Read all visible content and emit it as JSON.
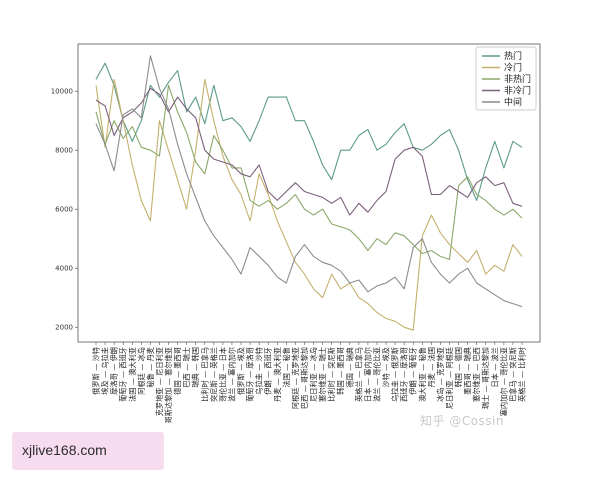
{
  "chart_data": {
    "type": "line",
    "title": "",
    "xlabel": "",
    "ylabel": "",
    "ylim": [
      1500,
      11600
    ],
    "yticks": [
      2000,
      4000,
      6000,
      8000,
      10000
    ],
    "grid": false,
    "legend_placement": "top-right",
    "categories": [
      "俄罗斯 — 沙特",
      "埃及 — 乌拉圭",
      "摩洛哥 — 伊朗",
      "葡萄牙 — 西班牙",
      "法国 — 澳大利亚",
      "阿根廷 — 冰岛",
      "秘鲁 — 丹麦",
      "克罗地亚 — 尼日利亚",
      "哥斯达黎加 — 塞尔维亚",
      "德国 — 墨西哥",
      "巴西 — 瑞士",
      "瑞典 — 韩国",
      "比利时 — 巴拿马",
      "突尼斯 — 英格兰",
      "哥伦比亚 — 日本",
      "波兰 — 塞内加尔",
      "俄罗斯 — 埃及",
      "葡萄牙 — 摩洛哥",
      "乌拉圭 — 沙特",
      "伊朗 — 西班牙",
      "丹麦 — 澳大利亚",
      "法国 — 秘鲁",
      "阿根廷 — 克罗地亚",
      "巴西 — 哥斯达黎加",
      "尼日利亚 — 冰岛",
      "塞尔维亚 — 瑞士",
      "比利时 — 突尼斯",
      "韩国 — 墨西哥",
      "德国 — 瑞典",
      "英格兰 — 巴拿马",
      "日本 — 塞内加尔",
      "波兰 — 哥伦比亚",
      "沙特 — 埃及",
      "乌拉圭 — 俄罗斯",
      "西班牙 — 摩洛哥",
      "伊朗 — 葡萄牙",
      "澳大利亚 — 秘鲁",
      "丹麦 — 法国",
      "冰岛 — 克罗地亚",
      "尼日利亚 — 阿根廷",
      "韩国 — 德国",
      "墨西哥 — 瑞典",
      "塞尔维亚 — 巴西",
      "瑞士 — 哥斯达黎加",
      "日本 — 波兰",
      "塞内加尔 — 哥伦比亚",
      "巴拿马 — 突尼斯",
      "英格兰 — 比利时"
    ],
    "series": [
      {
        "name": "热门",
        "color": "#5d9b8a",
        "values": [
          10400,
          10950,
          10200,
          9000,
          8300,
          9000,
          10200,
          9800,
          10300,
          10700,
          9300,
          9800,
          8900,
          10200,
          9000,
          9100,
          8800,
          8300,
          9000,
          9800,
          9800,
          9800,
          9000,
          9000,
          8300,
          7500,
          7000,
          8000,
          8000,
          8500,
          8700,
          8000,
          8200,
          8600,
          8900,
          8100,
          8000,
          8200,
          8500,
          8700,
          8000,
          7000,
          6300,
          7400,
          8300,
          7400,
          8300,
          8100
        ]
      },
      {
        "name": "冷门",
        "color": "#c4b06c",
        "values": [
          10200,
          8100,
          10400,
          9000,
          7500,
          6300,
          5600,
          9000,
          8000,
          7000,
          6000,
          8000,
          10400,
          9000,
          7800,
          7000,
          6500,
          5600,
          7200,
          6500,
          5600,
          4900,
          4200,
          3800,
          3300,
          3000,
          3800,
          3300,
          3500,
          3000,
          2800,
          2500,
          2300,
          2200,
          2000,
          1900,
          5100,
          5800,
          5200,
          4800,
          4500,
          4200,
          4600,
          3800,
          4100,
          3900,
          4800,
          4400
        ]
      },
      {
        "name": "非热门",
        "color": "#8ba86a",
        "values": [
          9300,
          8200,
          9000,
          8400,
          8800,
          8100,
          8000,
          7800,
          10200,
          9300,
          8600,
          7600,
          7200,
          8500,
          8000,
          7400,
          7400,
          6300,
          6100,
          6300,
          6000,
          6200,
          6500,
          6000,
          5800,
          6000,
          5500,
          5400,
          5300,
          5000,
          4600,
          5000,
          4800,
          5200,
          5100,
          4800,
          4500,
          4600,
          4400,
          4300,
          6800,
          7100,
          6500,
          6300,
          6000,
          5800,
          6000,
          5700
        ]
      },
      {
        "name": "非冷门",
        "color": "#7b5f7d",
        "values": [
          9700,
          9500,
          8500,
          9100,
          9300,
          9600,
          10100,
          9900,
          9300,
          9800,
          9400,
          9100,
          8000,
          7700,
          7600,
          7500,
          7200,
          7100,
          7500,
          6600,
          6300,
          6600,
          6900,
          6600,
          6500,
          6400,
          6200,
          6400,
          5800,
          6200,
          5900,
          6300,
          6600,
          7700,
          8000,
          8100,
          7800,
          6500,
          6500,
          6800,
          6600,
          6400,
          6900,
          7100,
          6800,
          6900,
          6200,
          6100
        ]
      },
      {
        "name": "中间",
        "color": "#8c8c8c",
        "values": [
          8900,
          8200,
          7300,
          9200,
          9400,
          9100,
          11200,
          10100,
          9400,
          8200,
          7200,
          6400,
          5600,
          5100,
          4700,
          4300,
          3800,
          4700,
          4400,
          4100,
          3700,
          3500,
          4400,
          4800,
          4400,
          4200,
          4100,
          3900,
          3500,
          3600,
          3200,
          3400,
          3500,
          3700,
          3300,
          4700,
          5000,
          4200,
          3800,
          3500,
          3800,
          4000,
          3500,
          3300,
          3100,
          2900,
          2800,
          2700
        ]
      }
    ]
  },
  "watermark": "知乎 @Cossin",
  "site_badge": "xjlive168.com"
}
